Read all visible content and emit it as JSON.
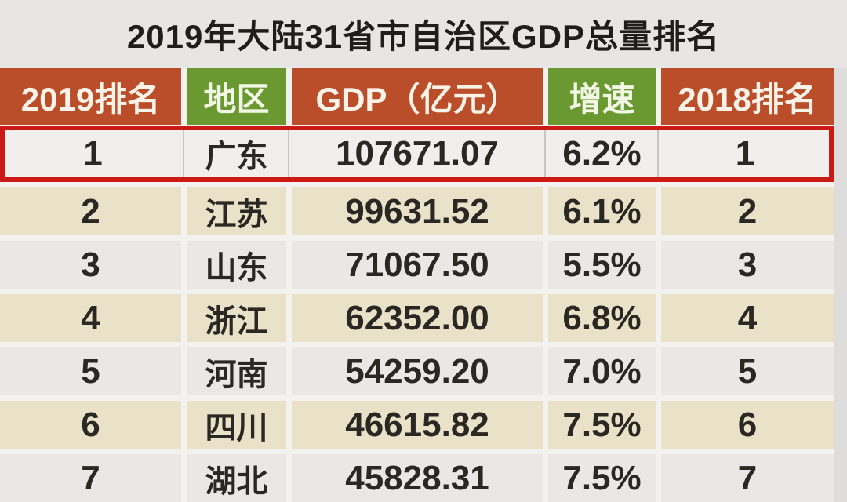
{
  "title": "2019年大陆31省市自治区GDP总量排名",
  "chart_data": {
    "type": "table",
    "title": "2019年大陆31省市自治区GDP总量排名",
    "columns": [
      "2019排名",
      "地区",
      "GDP（亿元）",
      "增速",
      "2018排名"
    ],
    "rows": [
      {
        "rank2019": "1",
        "region": "广东",
        "gdp": "107671.07",
        "growth": "6.2%",
        "rank2018": "1",
        "highlighted": true
      },
      {
        "rank2019": "2",
        "region": "江苏",
        "gdp": "99631.52",
        "growth": "6.1%",
        "rank2018": "2",
        "highlighted": false
      },
      {
        "rank2019": "3",
        "region": "山东",
        "gdp": "71067.50",
        "growth": "5.5%",
        "rank2018": "3",
        "highlighted": false
      },
      {
        "rank2019": "4",
        "region": "浙江",
        "gdp": "62352.00",
        "growth": "6.8%",
        "rank2018": "4",
        "highlighted": false
      },
      {
        "rank2019": "5",
        "region": "河南",
        "gdp": "54259.20",
        "growth": "7.0%",
        "rank2018": "5",
        "highlighted": false
      },
      {
        "rank2019": "6",
        "region": "四川",
        "gdp": "46615.82",
        "growth": "7.5%",
        "rank2018": "6",
        "highlighted": false
      },
      {
        "rank2019": "7",
        "region": "湖北",
        "gdp": "45828.31",
        "growth": "7.5%",
        "rank2018": "7",
        "highlighted": false
      }
    ],
    "notes": "Row 1 (广东) is outlined with a red highlight border; last row is cut off at the bottom edge of the frame."
  },
  "colors": {
    "page_bg": "#dedddb",
    "title_bg": "#e7e6e4",
    "title_color": "#201e1b",
    "header_orange": "#bb4e2a",
    "header_green": "#6b9931",
    "row_beige": "#e9e2c9",
    "row_light": "#e9e8e6",
    "highlight_bg": "#f1efed",
    "highlight_border": "#cb1a15",
    "gap_bg": "#f3f2ef",
    "text_color": "#2b2722"
  }
}
